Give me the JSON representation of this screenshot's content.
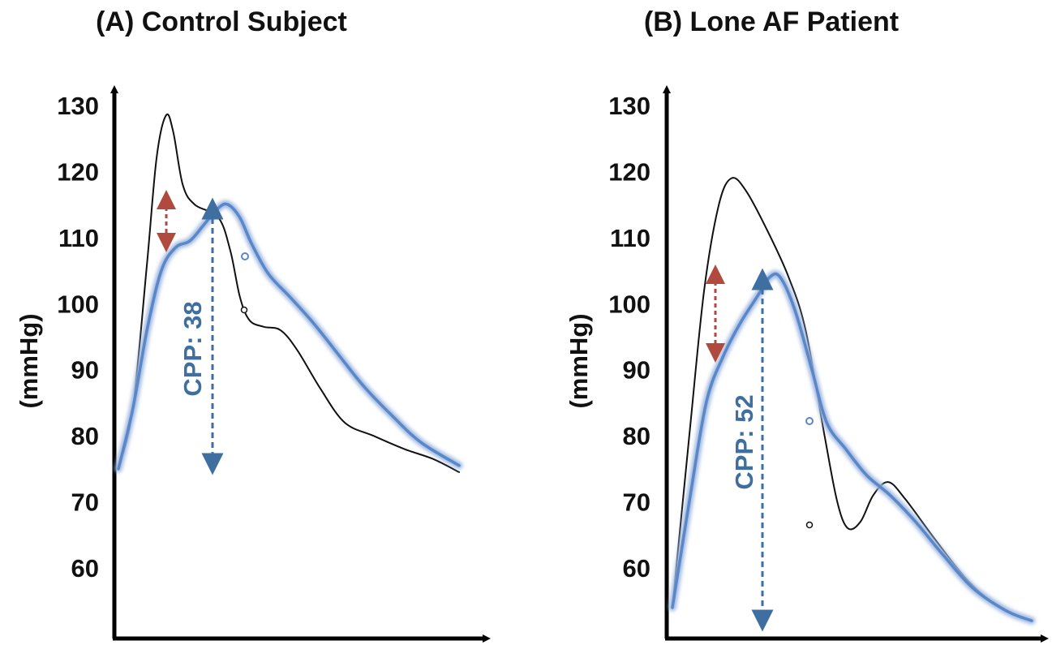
{
  "chart_data": [
    {
      "type": "line",
      "title": "(A) Control Subject",
      "ylabel": "(mmHg)",
      "ylim": [
        50,
        138
      ],
      "yticks": [
        60,
        70,
        80,
        90,
        100,
        110,
        120,
        130
      ],
      "series": [
        {
          "color": "#111111",
          "points": [
            [
              0,
              75
            ],
            [
              0.6,
              84
            ],
            [
              1.2,
              106
            ],
            [
              1.6,
              122
            ],
            [
              2.0,
              128.5
            ],
            [
              2.3,
              126
            ],
            [
              2.7,
              118
            ],
            [
              3.2,
              115
            ],
            [
              4.2,
              113
            ],
            [
              4.7,
              108
            ],
            [
              5.1,
              101
            ],
            [
              5.5,
              97.5
            ],
            [
              6.1,
              96.5
            ],
            [
              6.8,
              96
            ],
            [
              7.5,
              93
            ],
            [
              8.5,
              87
            ],
            [
              9.5,
              82
            ],
            [
              10.7,
              80
            ],
            [
              12.0,
              78
            ],
            [
              13.2,
              76.5
            ],
            [
              14.3,
              74.5
            ]
          ]
        },
        {
          "color": "#5b86c8",
          "points": [
            [
              0,
              75
            ],
            [
              0.6,
              84
            ],
            [
              1.2,
              96
            ],
            [
              1.8,
              105
            ],
            [
              2.4,
              108.5
            ],
            [
              3.0,
              109.5
            ],
            [
              3.6,
              112
            ],
            [
              4.2,
              114.5
            ],
            [
              4.6,
              115
            ],
            [
              5.1,
              113
            ],
            [
              5.6,
              109
            ],
            [
              6.3,
              104.5
            ],
            [
              7.2,
              101
            ],
            [
              8.2,
              97
            ],
            [
              9.3,
              92
            ],
            [
              10.3,
              87.5
            ],
            [
              11.5,
              83
            ],
            [
              12.7,
              79
            ],
            [
              14.3,
              75.5
            ]
          ]
        }
      ],
      "annotations": [
        {
          "text": "CPP: 38",
          "color": "#3f6fa0"
        }
      ]
    },
    {
      "type": "line",
      "title": "(B) Lone AF Patient",
      "ylabel": "(mmHg)",
      "ylim": [
        50,
        138
      ],
      "yticks": [
        60,
        70,
        80,
        90,
        100,
        110,
        120,
        130
      ],
      "series": [
        {
          "color": "#111111",
          "points": [
            [
              0,
              54
            ],
            [
              0.8,
              80
            ],
            [
              1.5,
              102
            ],
            [
              2.2,
              115
            ],
            [
              2.8,
              119
            ],
            [
              3.5,
              117
            ],
            [
              4.5,
              111
            ],
            [
              5.5,
              104
            ],
            [
              6.3,
              96
            ],
            [
              7.2,
              80
            ],
            [
              7.8,
              70
            ],
            [
              8.3,
              66
            ],
            [
              8.9,
              67
            ],
            [
              9.5,
              71
            ],
            [
              10.2,
              73
            ],
            [
              11.0,
              70.5
            ],
            [
              12.5,
              64
            ],
            [
              14.0,
              58
            ],
            [
              15.5,
              54
            ],
            [
              17.0,
              52
            ]
          ]
        },
        {
          "color": "#5b86c8",
          "points": [
            [
              0,
              54
            ],
            [
              0.8,
              70
            ],
            [
              1.6,
              85
            ],
            [
              2.4,
              92
            ],
            [
              3.2,
              97
            ],
            [
              4.0,
              101
            ],
            [
              4.6,
              104
            ],
            [
              5.1,
              104
            ],
            [
              5.8,
              99
            ],
            [
              6.6,
              90
            ],
            [
              7.3,
              82
            ],
            [
              8.2,
              78
            ],
            [
              9.2,
              74
            ],
            [
              10.3,
              71
            ],
            [
              11.5,
              67
            ],
            [
              12.8,
              62
            ],
            [
              14.2,
              57
            ],
            [
              15.8,
              53.5
            ],
            [
              17.0,
              52
            ]
          ]
        }
      ],
      "annotations": [
        {
          "text": "CPP: 52",
          "color": "#3f6fa0"
        }
      ]
    }
  ]
}
